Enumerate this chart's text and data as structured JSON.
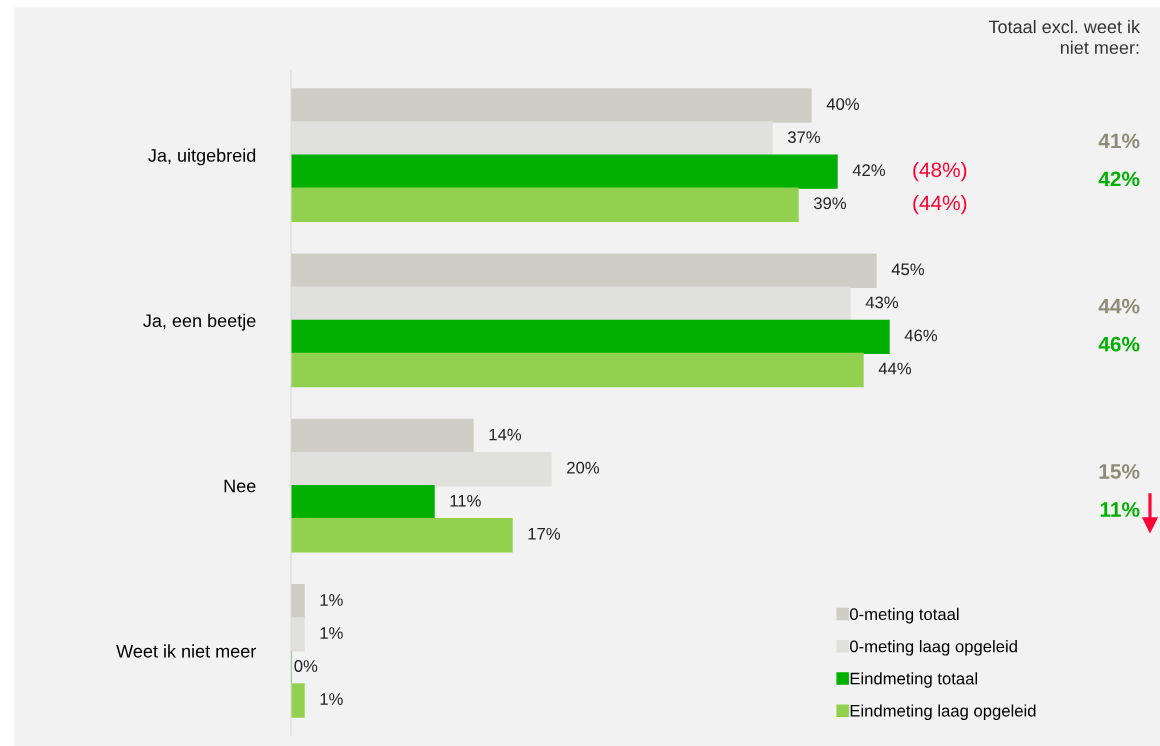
{
  "chart_data": {
    "type": "bar",
    "orientation": "horizontal",
    "categories": [
      "Ja, uitgebreid",
      "Ja, een beetje",
      "Nee",
      "Weet ik niet meer"
    ],
    "series": [
      {
        "name": "0-meting totaal",
        "color": "#cfcec6",
        "values": [
          40,
          45,
          14,
          1
        ],
        "value_labels": [
          "40%",
          "45%",
          "14%",
          "1%"
        ]
      },
      {
        "name": "0-meting laag opgeleid",
        "color": "#e0e0dc",
        "values": [
          37,
          43,
          20,
          1
        ],
        "value_labels": [
          "37%",
          "43%",
          "20%",
          "1%"
        ]
      },
      {
        "name": "Eindmeting totaal",
        "color": "#00b000",
        "values": [
          42,
          46,
          11,
          0
        ],
        "value_labels": [
          "42%",
          "46%",
          "11%",
          "0%"
        ]
      },
      {
        "name": "Eindmeting laag opgeleid",
        "color": "#92d050",
        "values": [
          39,
          44,
          17,
          1
        ],
        "value_labels": [
          "39%",
          "44%",
          "17%",
          "1%"
        ]
      }
    ],
    "tick_labels": "y",
    "grid": false,
    "legend": "bottom right",
    "annotations": [
      "Totaal excl. weet ik\nniet meer:",
      "41%",
      "42%",
      "44%",
      "46%",
      "15%",
      "11%",
      "(48%)",
      "(44%)"
    ]
  }
}
